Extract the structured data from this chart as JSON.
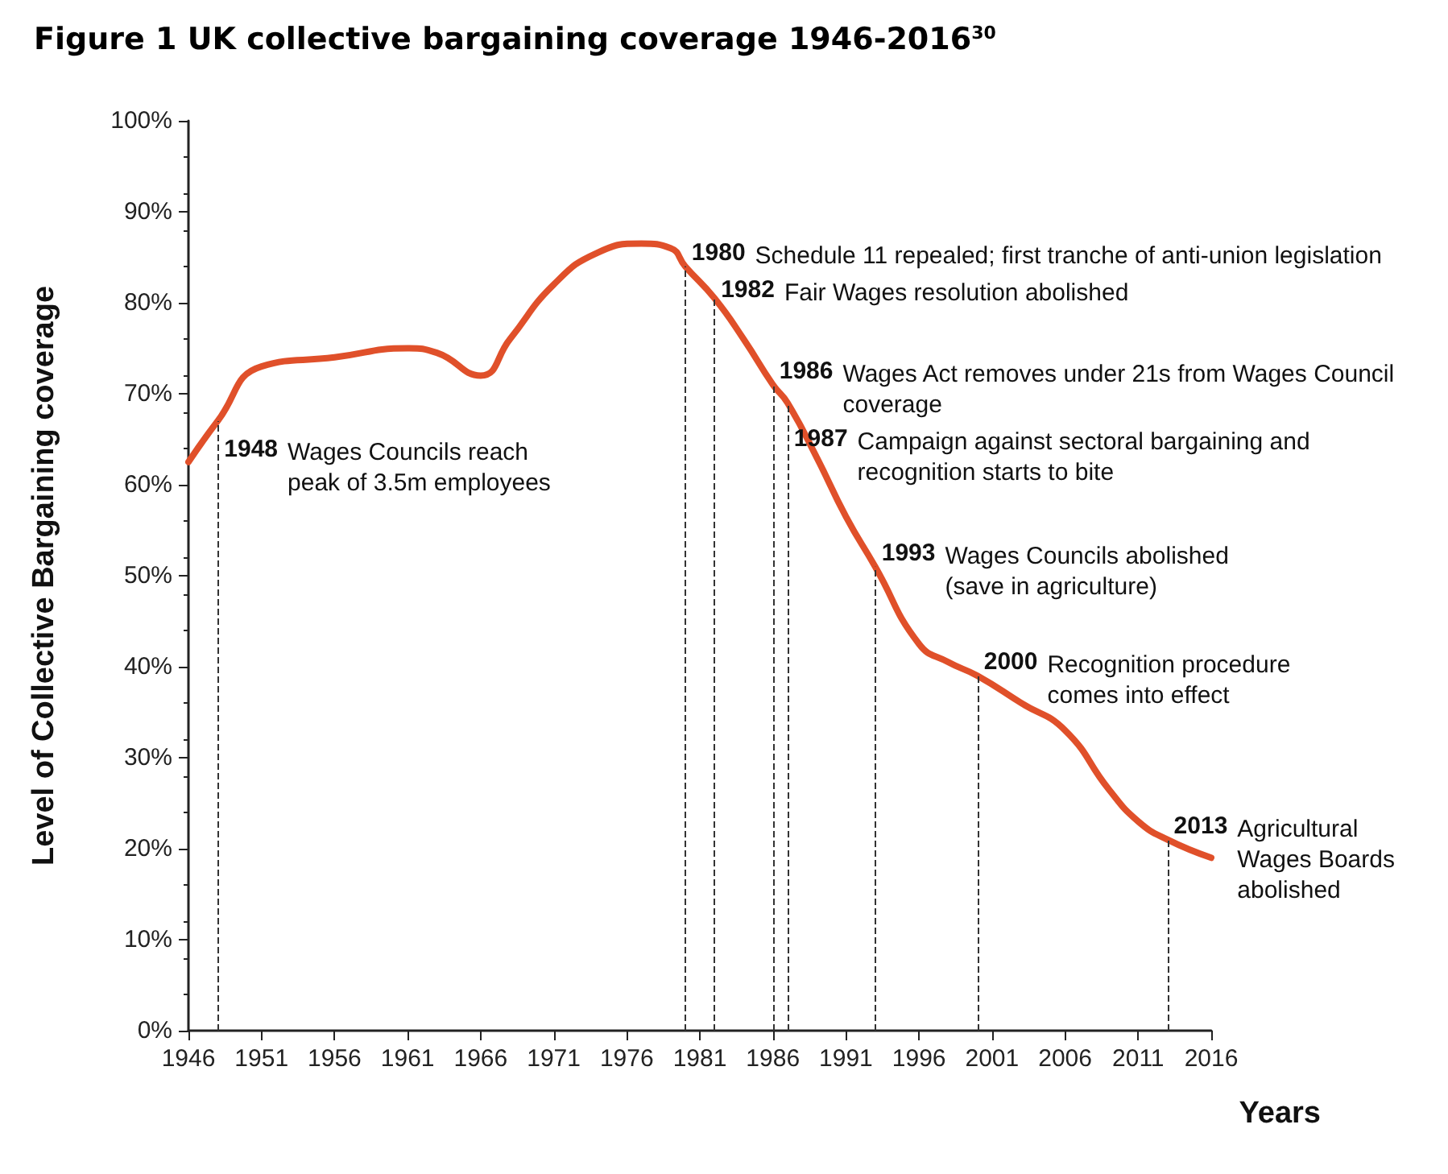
{
  "chart_data": {
    "type": "line",
    "title": "Figure 1 UK collective bargaining coverage 1946-2016$^{30}$",
    "xlabel": "Years",
    "ylabel": "Level of Collective Bargaining coverage",
    "series": [
      {
        "color": "#e0502a",
        "x": [
          1946,
          1948,
          1951,
          1956,
          1961,
          1963,
          1966,
          1968,
          1971,
          1974,
          1977,
          1979,
          1980,
          1982,
          1984,
          1986,
          1987,
          1989,
          1991,
          1993,
          1996,
          1998,
          2000,
          2003,
          2006,
          2009,
          2011,
          2013,
          2016
        ],
        "values": [
          62.5,
          67,
          73,
          74,
          75,
          74.5,
          72,
          76,
          82,
          85.5,
          86.5,
          86,
          84,
          80.5,
          76,
          71,
          69,
          63,
          56.5,
          51,
          42.5,
          40.5,
          39,
          36,
          33,
          26.5,
          23,
          21,
          19
        ]
      }
    ],
    "xlim": [
      1946,
      2016
    ],
    "xticks": [
      1946,
      1951,
      1956,
      1961,
      1966,
      1971,
      1976,
      1981,
      1986,
      1991,
      1996,
      2001,
      2006,
      2011,
      2016
    ],
    "ylim": [
      0,
      100
    ],
    "yticks": [
      {
        "value": 0,
        "label": "0%"
      },
      {
        "value": 10,
        "label": "10%"
      },
      {
        "value": 20,
        "label": "20%"
      },
      {
        "value": 30,
        "label": "30%"
      },
      {
        "value": 40,
        "label": "40%"
      },
      {
        "value": 50,
        "label": "50%"
      },
      {
        "value": 60,
        "label": "60%"
      },
      {
        "value": 70,
        "label": "70%"
      },
      {
        "value": 80,
        "label": "80%"
      },
      {
        "value": 90,
        "label": "90%"
      },
      {
        "value": 100,
        "label": "100%"
      }
    ],
    "grid": false,
    "marker": "none",
    "line_style": "solid",
    "ref_lines": [
      {
        "axis": "x",
        "value": 1948,
        "line_style": "dashed",
        "color": "#333333",
        "label": "1948 Wages Councils reach\npeak of 3.5m employees"
      },
      {
        "axis": "x",
        "value": 1980,
        "line_style": "dashed",
        "color": "#333333",
        "label": "1980 Schedule 11 repealed; first tranche of anti-union legislation"
      },
      {
        "axis": "x",
        "value": 1982,
        "line_style": "dashed",
        "color": "#333333",
        "label": "1982 Fair Wages resolution abolished"
      },
      {
        "axis": "x",
        "value": 1986,
        "line_style": "dashed",
        "color": "#333333",
        "label": "1986 Wages Act removes under 21s from Wages Council\ncoverage"
      },
      {
        "axis": "x",
        "value": 1987,
        "line_style": "dashed",
        "color": "#333333",
        "label": "1987 Campaign against sectoral bargaining and\nrecognition starts to bite"
      },
      {
        "axis": "x",
        "value": 1993,
        "line_style": "dashed",
        "color": "#333333",
        "label": "1993 Wages Councils abolished\n(save in agriculture)"
      },
      {
        "axis": "x",
        "value": 2000,
        "line_style": "dashed",
        "color": "#333333",
        "label": "2000 Recognition procedure\ncomes into effect"
      },
      {
        "axis": "x",
        "value": 2013,
        "line_style": "dashed",
        "color": "#333333",
        "label": "2013 Agricultural\nWages Boards\nabolished"
      }
    ]
  }
}
